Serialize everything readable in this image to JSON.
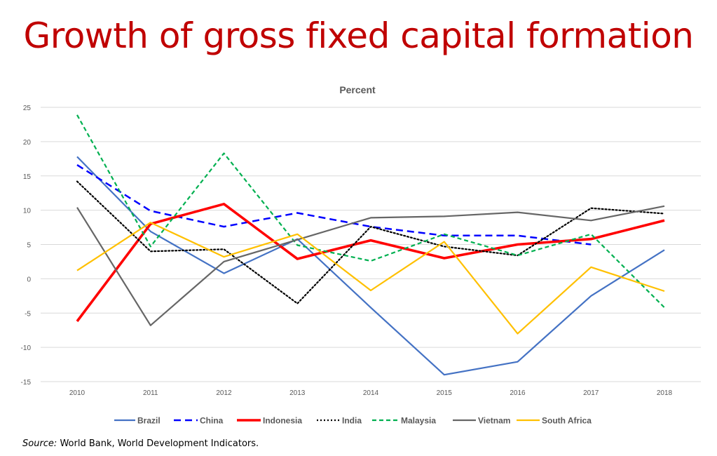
{
  "page": {
    "title": "Growth of gross fixed capital formation",
    "source_label": "Source:",
    "source_text": " World Bank, World Development Indicators."
  },
  "chart_data": {
    "type": "line",
    "title": "Percent",
    "xlabel": "",
    "ylabel": "",
    "x": [
      "2010",
      "2011",
      "2012",
      "2013",
      "2014",
      "2015",
      "2016",
      "2017",
      "2018"
    ],
    "ylim": [
      -15,
      25
    ],
    "yticks": [
      25,
      20,
      15,
      10,
      5,
      0,
      -5,
      -10,
      -15
    ],
    "grid": true,
    "legend_position": "bottom",
    "series": [
      {
        "name": "Brazil",
        "color": "#4472C4",
        "style": "solid",
        "width": 2.2,
        "values": [
          17.8,
          6.9,
          0.8,
          5.8,
          -4.2,
          -14.0,
          -12.1,
          -2.5,
          4.2
        ]
      },
      {
        "name": "China",
        "color": "#0000FF",
        "style": "dash",
        "width": 2.5,
        "values": [
          16.6,
          9.9,
          7.6,
          9.6,
          7.6,
          6.3,
          6.3,
          5.0,
          null
        ]
      },
      {
        "name": "Indonesia",
        "color": "#FF0000",
        "style": "solid",
        "width": 3.6,
        "values": [
          -6.2,
          8.0,
          10.9,
          2.9,
          5.6,
          3.0,
          5.0,
          5.8,
          8.5
        ]
      },
      {
        "name": "India",
        "color": "#000000",
        "style": "dot",
        "width": 2.2,
        "values": [
          14.2,
          4.0,
          4.3,
          -3.6,
          7.6,
          4.7,
          3.4,
          10.3,
          9.5
        ]
      },
      {
        "name": "Malaysia",
        "color": "#00B050",
        "style": "dash-short",
        "width": 2.2,
        "values": [
          23.9,
          4.7,
          18.3,
          4.9,
          2.6,
          6.5,
          3.4,
          6.5,
          -4.2
        ]
      },
      {
        "name": "Vietnam",
        "color": "#666666",
        "style": "solid",
        "width": 2.2,
        "values": [
          10.4,
          -6.8,
          2.5,
          5.7,
          8.9,
          9.1,
          9.7,
          8.5,
          10.6
        ]
      },
      {
        "name": "South Africa",
        "color": "#FFC000",
        "style": "solid",
        "width": 2.2,
        "values": [
          1.2,
          8.2,
          3.2,
          6.5,
          -1.7,
          5.4,
          -8.0,
          1.7,
          -1.8
        ]
      }
    ]
  }
}
